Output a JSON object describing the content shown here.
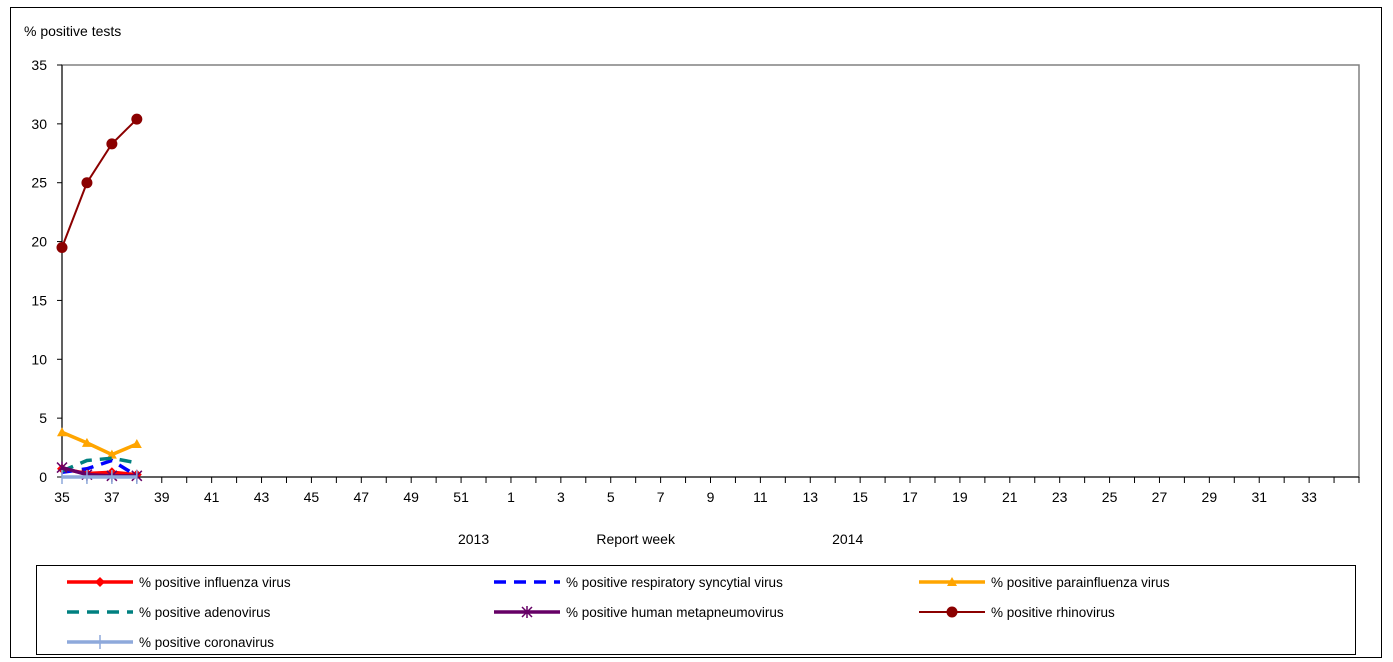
{
  "chart_data": {
    "type": "line",
    "ylabel": "% positive tests",
    "xlabel": "Report week",
    "ylim": [
      0,
      35
    ],
    "yticks": [
      0,
      5,
      10,
      15,
      20,
      25,
      30,
      35
    ],
    "xticks": [
      "35",
      "37",
      "39",
      "41",
      "43",
      "45",
      "47",
      "49",
      "51",
      "1",
      "3",
      "5",
      "7",
      "9",
      "11",
      "13",
      "15",
      "17",
      "19",
      "21",
      "23",
      "25",
      "27",
      "29",
      "31",
      "33"
    ],
    "year_labels": [
      {
        "label": "2013"
      },
      {
        "label": "2014"
      }
    ],
    "weeks": [
      "35",
      "36",
      "37",
      "38",
      "39",
      "40",
      "41",
      "42",
      "43",
      "44",
      "45",
      "46",
      "47",
      "48",
      "49",
      "50",
      "51",
      "52",
      "1",
      "2",
      "3",
      "4",
      "5",
      "6",
      "7",
      "8",
      "9",
      "10",
      "11",
      "12",
      "13",
      "14",
      "15",
      "16",
      "17",
      "18",
      "19",
      "20",
      "21",
      "22",
      "23",
      "24",
      "25",
      "26",
      "27",
      "28",
      "29",
      "30",
      "31",
      "32",
      "33",
      "34"
    ],
    "grid": false,
    "legend_position": "bottom",
    "series": [
      {
        "name": "% positive influenza virus",
        "color": "#ff0000",
        "style": "solid",
        "marker": "diamond",
        "x": [
          "35",
          "36",
          "37",
          "38"
        ],
        "values": [
          0.7,
          0.3,
          0.4,
          0.2
        ]
      },
      {
        "name": "% positive respiratory syncytial virus",
        "color": "#0000ff",
        "style": "dash",
        "marker": "none",
        "x": [
          "35",
          "36",
          "37",
          "38"
        ],
        "values": [
          0.4,
          0.7,
          1.4,
          0.1
        ]
      },
      {
        "name": "% positive parainfluenza virus",
        "color": "#ffa500",
        "style": "solid",
        "marker": "triangle",
        "x": [
          "35",
          "36",
          "37",
          "38"
        ],
        "values": [
          3.8,
          2.9,
          1.9,
          2.8
        ]
      },
      {
        "name": "% positive adenovirus",
        "color": "#008080",
        "style": "dash",
        "marker": "none",
        "x": [
          "35",
          "36",
          "37",
          "38"
        ],
        "values": [
          0.5,
          1.4,
          1.6,
          1.2
        ]
      },
      {
        "name": "% positive human metapneumovirus",
        "color": "#660066",
        "style": "solid",
        "marker": "star",
        "x": [
          "35",
          "36",
          "37",
          "38"
        ],
        "values": [
          0.8,
          0.2,
          0.1,
          0.1
        ]
      },
      {
        "name": "% positive rhinovirus",
        "color": "#8b0000",
        "style": "solid",
        "marker": "circle",
        "x": [
          "35",
          "36",
          "37",
          "38"
        ],
        "values": [
          19.5,
          25.0,
          28.3,
          30.4
        ]
      },
      {
        "name": "% positive coronavirus",
        "color": "#8ea9db",
        "style": "solid",
        "marker": "plus",
        "x": [
          "35",
          "36",
          "37",
          "38"
        ],
        "values": [
          0.0,
          0.0,
          0.0,
          0.0
        ]
      }
    ]
  }
}
